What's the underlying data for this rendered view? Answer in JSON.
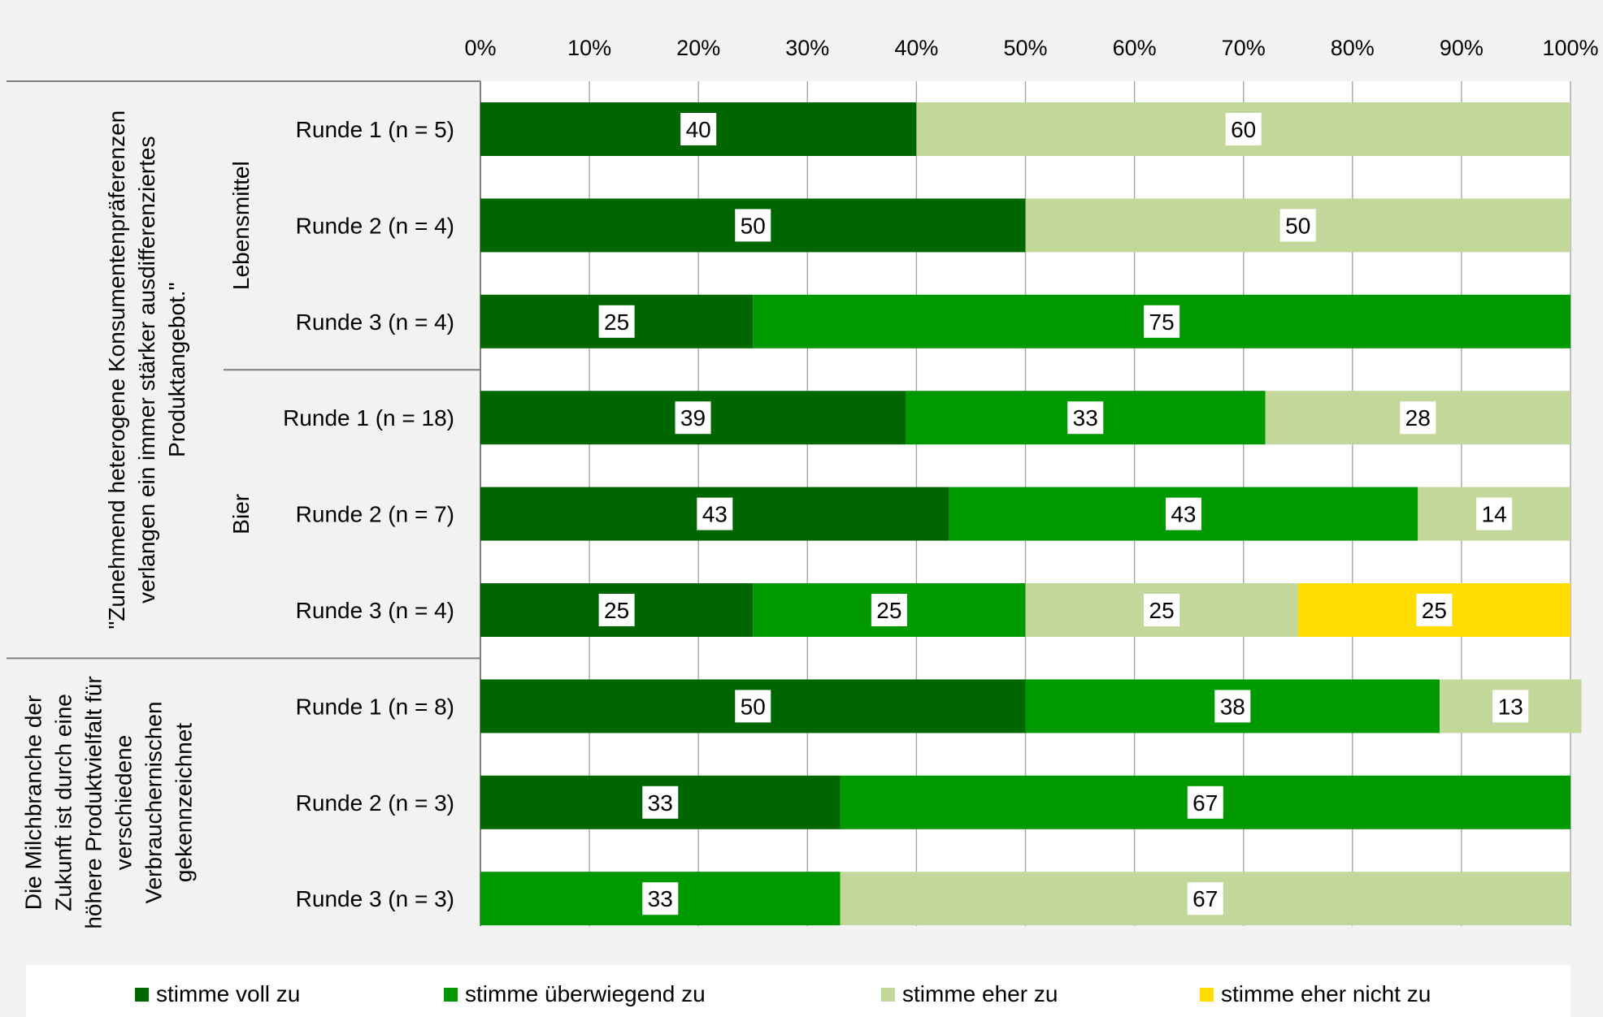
{
  "chart_data": {
    "type": "bar",
    "orientation": "horizontal",
    "stacked": "100%",
    "x_ticks": [
      "0%",
      "10%",
      "20%",
      "30%",
      "40%",
      "50%",
      "60%",
      "70%",
      "80%",
      "90%",
      "100%"
    ],
    "xlim": [
      0,
      100
    ],
    "grid": true,
    "legend_position": "bottom",
    "groups": [
      {
        "label": "\"Zunehmend heterogene Konsumentenpräferenzen verlangen ein immer stärker ausdifferenziertes Produktangebot.\"",
        "label_lines": [
          "\"Zunehmend heterogene Konsumentenpräferenzen",
          "verlangen ein immer stärker ausdifferenziertes",
          "Produktangebot.\""
        ],
        "subgroups": [
          {
            "label": "Lebensmittel",
            "categories": [
              "Runde 1 (n = 5)",
              "Runde 2 (n = 4)",
              "Runde 3 (n = 4)"
            ]
          },
          {
            "label": "Bier",
            "categories": [
              "Runde 1 (n = 18)",
              "Runde 2 (n = 7)",
              "Runde 3 (n = 4)"
            ]
          }
        ]
      },
      {
        "label": "Die Milchbranche der Zukunft ist durch eine höhere Produktvielfalt für verschiedene Verbrauchernischen gekennzeichnet",
        "label_lines": [
          "Die Milchbranche der",
          "Zukunft ist durch eine",
          "höhere Produktvielfalt für",
          "verschiedene",
          "Verbrauchernischen",
          "gekennzeichnet"
        ],
        "subgroups": [
          {
            "label": "",
            "categories": [
              "Runde 1 (n = 8)",
              "Runde 2 (n = 3)",
              "Runde 3 (n = 3)"
            ]
          }
        ]
      }
    ],
    "categories": [
      "Runde 1 (n = 5)",
      "Runde 2 (n = 4)",
      "Runde 3 (n = 4)",
      "Runde 1 (n = 18)",
      "Runde 2 (n = 7)",
      "Runde 3 (n = 4)",
      "Runde 1 (n = 8)",
      "Runde 2 (n = 3)",
      "Runde 3 (n = 3)"
    ],
    "series": [
      {
        "name": "stimme voll zu",
        "color": "#006600",
        "values": [
          40,
          50,
          25,
          39,
          43,
          25,
          50,
          33,
          0
        ]
      },
      {
        "name": "stimme überwiegend zu",
        "color": "#009900",
        "values": [
          0,
          0,
          75,
          33,
          43,
          25,
          38,
          67,
          33
        ]
      },
      {
        "name": "stimme eher zu",
        "color": "#c4d79b",
        "values": [
          60,
          50,
          0,
          28,
          14,
          25,
          13,
          0,
          67
        ]
      },
      {
        "name": "stimme eher nicht zu",
        "color": "#ffdd00",
        "values": [
          0,
          0,
          0,
          0,
          0,
          25,
          0,
          0,
          0
        ]
      }
    ]
  }
}
